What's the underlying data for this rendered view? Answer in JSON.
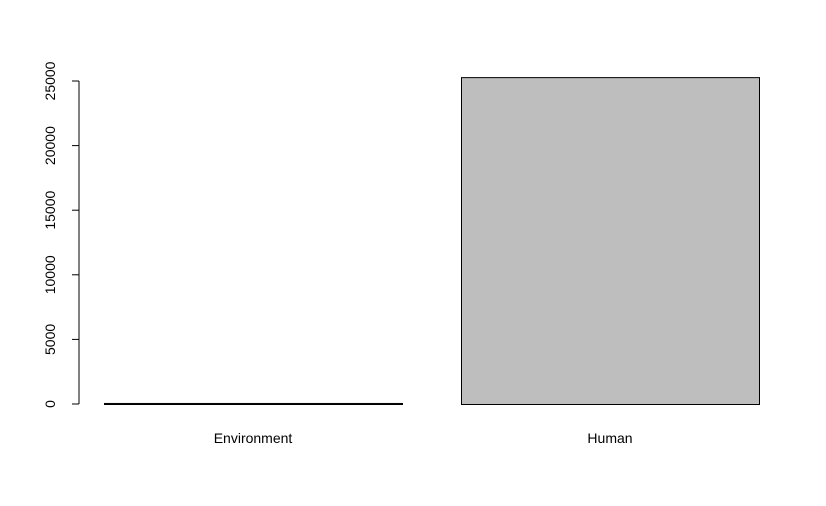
{
  "chart_data": {
    "type": "bar",
    "title": "",
    "xlabel": "",
    "ylabel": "",
    "categories": [
      "Environment",
      "Human"
    ],
    "values": [
      80,
      25300
    ],
    "ylim": [
      0,
      25000
    ],
    "yticks": [
      0,
      5000,
      10000,
      15000,
      20000,
      25000
    ],
    "ytick_labels": [
      "0",
      "5000",
      "10000",
      "15000",
      "20000",
      "25000"
    ],
    "grid": false,
    "legend": "none",
    "bar_fill": "#bebebe",
    "bar_stroke": "#000000"
  }
}
